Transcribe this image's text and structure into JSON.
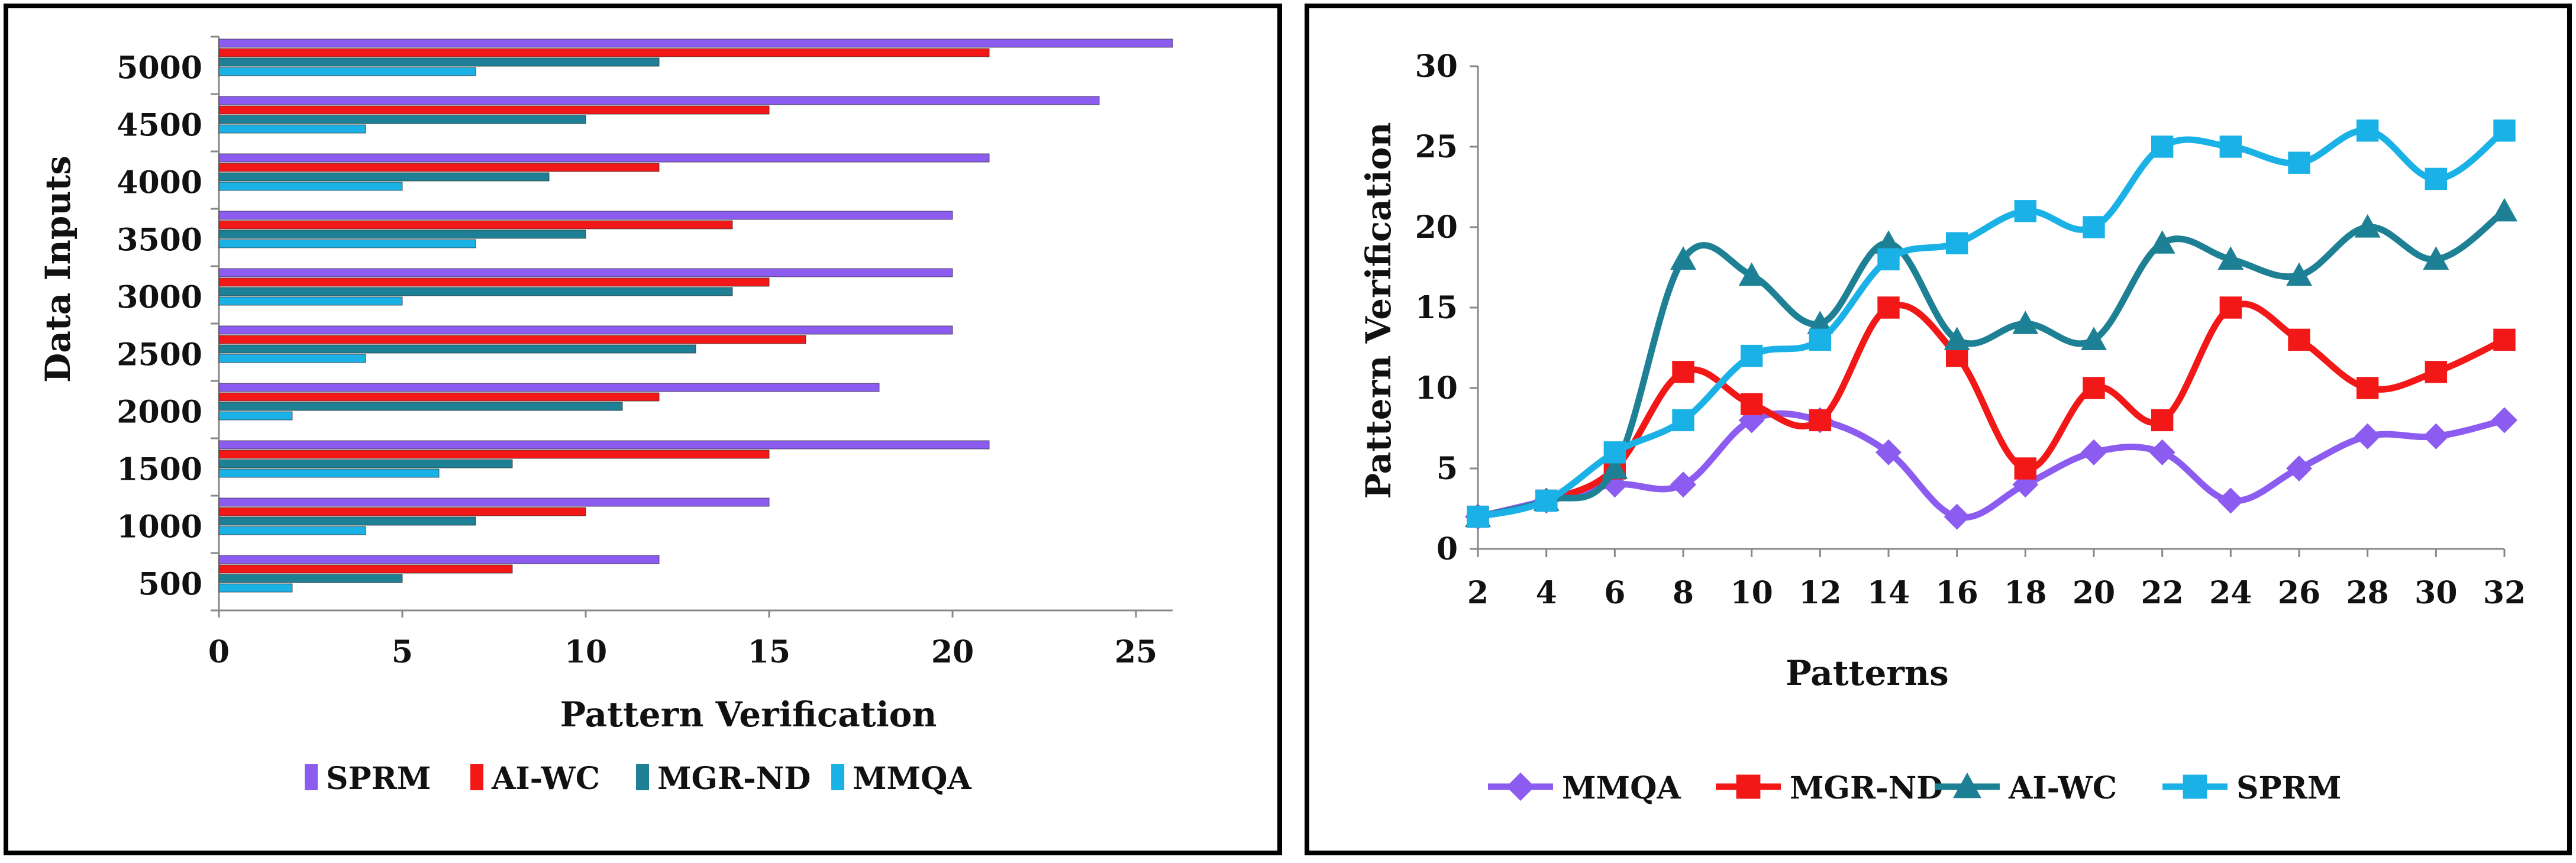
{
  "chart_data": [
    {
      "type": "bar",
      "orientation": "horizontal",
      "categories": [
        "500",
        "1000",
        "1500",
        "2000",
        "2500",
        "3000",
        "3500",
        "4000",
        "4500",
        "5000"
      ],
      "series": [
        {
          "name": "SPRM",
          "color": "#8c5cf0",
          "values": [
            12,
            15,
            21,
            18,
            20,
            20,
            20,
            21,
            24,
            26
          ]
        },
        {
          "name": "AI-WC",
          "color": "#f21818",
          "values": [
            8,
            10,
            15,
            12,
            16,
            15,
            14,
            12,
            15,
            21
          ]
        },
        {
          "name": "MGR-ND",
          "color": "#1e8094",
          "values": [
            5,
            7,
            8,
            11,
            13,
            14,
            10,
            9,
            10,
            12
          ]
        },
        {
          "name": "MMQA",
          "color": "#1ab2e6",
          "values": [
            2,
            4,
            6,
            2,
            4,
            5,
            7,
            5,
            4,
            7
          ]
        }
      ],
      "xlabel": "Pattern Verification",
      "ylabel": "Data Inputs",
      "xlim": [
        0,
        26
      ],
      "xticks": [
        "0",
        "5",
        "10",
        "15",
        "20",
        "25"
      ],
      "legend_position": "bottom"
    },
    {
      "type": "line",
      "x": [
        2,
        4,
        6,
        8,
        10,
        12,
        14,
        16,
        18,
        20,
        22,
        24,
        26,
        28,
        30,
        32
      ],
      "series": [
        {
          "name": "MMQA",
          "color": "#8c5cf0",
          "marker": "diamond",
          "values": [
            2,
            3,
            4,
            4,
            8,
            8,
            6,
            2,
            4,
            6,
            6,
            3,
            5,
            7,
            7,
            8
          ]
        },
        {
          "name": "MGR-ND",
          "color": "#f21818",
          "marker": "square",
          "values": [
            2,
            3,
            5,
            11,
            9,
            8,
            15,
            12,
            5,
            10,
            8,
            15,
            13,
            10,
            11,
            13
          ]
        },
        {
          "name": "AI-WC",
          "color": "#1e8094",
          "marker": "triangle",
          "values": [
            2,
            3,
            5,
            18,
            17,
            14,
            19,
            13,
            14,
            13,
            19,
            18,
            17,
            20,
            18,
            21
          ]
        },
        {
          "name": "SPRM",
          "color": "#1ab2e6",
          "marker": "square",
          "values": [
            2,
            3,
            6,
            8,
            12,
            13,
            18,
            19,
            21,
            20,
            25,
            25,
            24,
            26,
            23,
            26
          ]
        }
      ],
      "xlabel": "Patterns",
      "ylabel": "Pattern Verification",
      "ylim": [
        0,
        30
      ],
      "yticks": [
        "0",
        "5",
        "10",
        "15",
        "20",
        "25",
        "30"
      ],
      "xticks": [
        "2",
        "4",
        "6",
        "8",
        "10",
        "12",
        "14",
        "16",
        "18",
        "20",
        "22",
        "24",
        "26",
        "28",
        "30",
        "32"
      ],
      "legend_position": "bottom"
    }
  ]
}
